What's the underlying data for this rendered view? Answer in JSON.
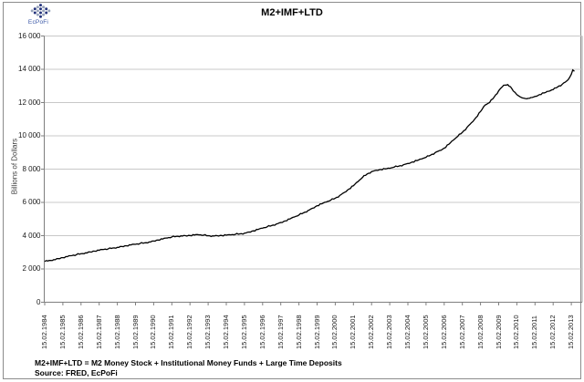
{
  "logo": {
    "text": "EcPoFi"
  },
  "header": {
    "title": "M2+IMF+LTD"
  },
  "footer": {
    "line1": "M2+IMF+LTD  = M2 Money Stock + Institutional Money Funds + Large Time Deposits",
    "line2": "Source: FRED, EcPoFi"
  },
  "colors": {
    "line": "#000000",
    "gridline": "#c8c8c8",
    "plot_border": "#a6a6a6",
    "axis": "#7f7f7f",
    "logo_navy": "#26357d",
    "logo_gray": "#98a4bb",
    "logo_text": "#3a57a7"
  },
  "chart_data": {
    "type": "line",
    "title": "M2+IMF+LTD",
    "xlabel": "",
    "ylabel": "Billions of Dollars",
    "ylim": [
      0,
      16000
    ],
    "y_tick_step": 2000,
    "y_tick_labels": [
      "16 000",
      "14 000",
      "12 000",
      "10 000",
      "8 000",
      "6 000",
      "4 000",
      "2 000",
      "0"
    ],
    "x_tick_labels": [
      "15.02.1984",
      "15.02.1985",
      "15.02.1986",
      "15.02.1987",
      "15.02.1988",
      "15.02.1989",
      "15.02.1990",
      "15.02.1991",
      "15.02.1992",
      "15.02.1993",
      "15.02.1994",
      "15.02.1995",
      "15.02.1996",
      "15.02.1997",
      "15.02.1998",
      "15.02.1999",
      "15.02.2000",
      "15.02.2001",
      "15.02.2002",
      "15.02.2003",
      "15.02.2004",
      "15.02.2005",
      "15.02.2006",
      "15.02.2007",
      "15.02.2008",
      "15.02.2009",
      "15.02.2010",
      "15.02.2011",
      "15.02.2012",
      "15.02.2013"
    ],
    "grid": true,
    "legend": "none",
    "series": [
      {
        "name": "M2+IMF+LTD",
        "points": [
          [
            1984.0,
            2450
          ],
          [
            1984.25,
            2510
          ],
          [
            1984.5,
            2560
          ],
          [
            1984.75,
            2620
          ],
          [
            1985.0,
            2680
          ],
          [
            1985.25,
            2740
          ],
          [
            1985.5,
            2800
          ],
          [
            1985.75,
            2860
          ],
          [
            1986.0,
            2920
          ],
          [
            1986.25,
            2970
          ],
          [
            1986.5,
            3020
          ],
          [
            1986.75,
            3070
          ],
          [
            1987.0,
            3120
          ],
          [
            1987.25,
            3170
          ],
          [
            1987.5,
            3210
          ],
          [
            1987.75,
            3260
          ],
          [
            1988.0,
            3300
          ],
          [
            1988.25,
            3350
          ],
          [
            1988.5,
            3390
          ],
          [
            1988.75,
            3440
          ],
          [
            1989.0,
            3480
          ],
          [
            1989.25,
            3530
          ],
          [
            1989.5,
            3570
          ],
          [
            1989.75,
            3620
          ],
          [
            1990.0,
            3680
          ],
          [
            1990.25,
            3740
          ],
          [
            1990.5,
            3800
          ],
          [
            1990.75,
            3860
          ],
          [
            1991.0,
            3920
          ],
          [
            1991.25,
            3960
          ],
          [
            1991.5,
            3990
          ],
          [
            1991.75,
            4000
          ],
          [
            1992.0,
            4010
          ],
          [
            1992.25,
            4040
          ],
          [
            1992.5,
            4050
          ],
          [
            1992.75,
            4030
          ],
          [
            1993.0,
            4000
          ],
          [
            1993.25,
            3990
          ],
          [
            1993.5,
            4000
          ],
          [
            1993.75,
            4010
          ],
          [
            1994.0,
            4030
          ],
          [
            1994.25,
            4050
          ],
          [
            1994.5,
            4080
          ],
          [
            1994.75,
            4110
          ],
          [
            1995.0,
            4150
          ],
          [
            1995.25,
            4220
          ],
          [
            1995.5,
            4290
          ],
          [
            1995.75,
            4370
          ],
          [
            1996.0,
            4450
          ],
          [
            1996.25,
            4530
          ],
          [
            1996.5,
            4610
          ],
          [
            1996.75,
            4700
          ],
          [
            1997.0,
            4790
          ],
          [
            1997.25,
            4890
          ],
          [
            1997.5,
            5000
          ],
          [
            1997.75,
            5120
          ],
          [
            1998.0,
            5240
          ],
          [
            1998.25,
            5370
          ],
          [
            1998.5,
            5510
          ],
          [
            1998.75,
            5650
          ],
          [
            1999.0,
            5800
          ],
          [
            1999.25,
            5910
          ],
          [
            1999.5,
            6020
          ],
          [
            1999.75,
            6130
          ],
          [
            2000.0,
            6250
          ],
          [
            2000.25,
            6420
          ],
          [
            2000.5,
            6600
          ],
          [
            2000.75,
            6800
          ],
          [
            2001.0,
            7000
          ],
          [
            2001.25,
            7250
          ],
          [
            2001.5,
            7500
          ],
          [
            2001.75,
            7700
          ],
          [
            2002.0,
            7850
          ],
          [
            2002.25,
            7930
          ],
          [
            2002.5,
            7980
          ],
          [
            2002.75,
            8010
          ],
          [
            2003.0,
            8050
          ],
          [
            2003.25,
            8120
          ],
          [
            2003.5,
            8180
          ],
          [
            2003.75,
            8260
          ],
          [
            2004.0,
            8340
          ],
          [
            2004.25,
            8430
          ],
          [
            2004.5,
            8510
          ],
          [
            2004.75,
            8610
          ],
          [
            2005.0,
            8710
          ],
          [
            2005.25,
            8840
          ],
          [
            2005.5,
            8990
          ],
          [
            2005.75,
            9120
          ],
          [
            2006.0,
            9260
          ],
          [
            2006.25,
            9490
          ],
          [
            2006.5,
            9740
          ],
          [
            2006.75,
            9970
          ],
          [
            2007.0,
            10210
          ],
          [
            2007.25,
            10500
          ],
          [
            2007.5,
            10790
          ],
          [
            2007.75,
            11100
          ],
          [
            2008.0,
            11460
          ],
          [
            2008.25,
            11850
          ],
          [
            2008.5,
            12000
          ],
          [
            2008.75,
            12330
          ],
          [
            2009.0,
            12710
          ],
          [
            2009.2,
            12950
          ],
          [
            2009.35,
            13050
          ],
          [
            2009.5,
            13080
          ],
          [
            2009.65,
            12950
          ],
          [
            2009.8,
            12700
          ],
          [
            2010.0,
            12480
          ],
          [
            2010.2,
            12330
          ],
          [
            2010.4,
            12260
          ],
          [
            2010.55,
            12230
          ],
          [
            2010.7,
            12260
          ],
          [
            2010.85,
            12310
          ],
          [
            2011.0,
            12370
          ],
          [
            2011.25,
            12480
          ],
          [
            2011.5,
            12580
          ],
          [
            2011.75,
            12680
          ],
          [
            2012.0,
            12780
          ],
          [
            2012.25,
            12940
          ],
          [
            2012.5,
            13100
          ],
          [
            2012.75,
            13300
          ],
          [
            2012.9,
            13500
          ],
          [
            2013.0,
            13700
          ],
          [
            2013.08,
            13960
          ],
          [
            2013.17,
            13880
          ]
        ]
      }
    ]
  }
}
